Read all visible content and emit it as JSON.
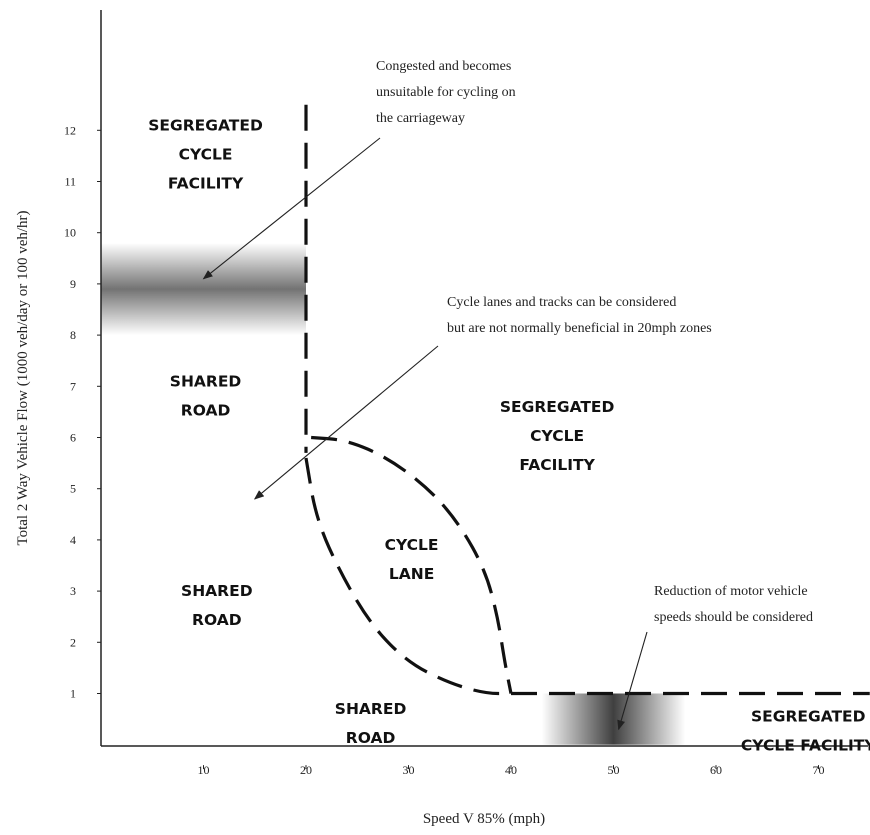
{
  "chart_data": {
    "type": "area",
    "title": "",
    "xlabel": "Speed V 85% (mph)",
    "ylabel": "Total 2 Way Vehicle Flow (1000 veh/day or 100 veh/hr)",
    "xlim": [
      0,
      75
    ],
    "ylim": [
      -0.4,
      14
    ],
    "x_ticks": [
      10,
      20,
      30,
      40,
      50,
      60,
      70
    ],
    "y_ticks": [
      1,
      2,
      3,
      4,
      5,
      6,
      7,
      8,
      9,
      10,
      11,
      12
    ],
    "grid": false,
    "boundaries": [
      {
        "name": "vertical-boundary",
        "style": "dashed",
        "points": [
          [
            20,
            12.5
          ],
          [
            20,
            5.7
          ]
        ]
      },
      {
        "name": "cycle-lane-outer",
        "style": "dashed",
        "points": [
          [
            20,
            5.6
          ],
          [
            21,
            4.4
          ],
          [
            23.5,
            3.3
          ],
          [
            26.5,
            2.3
          ],
          [
            30,
            1.6
          ],
          [
            34,
            1.2
          ],
          [
            37.5,
            1.0
          ],
          [
            40,
            1.0
          ]
        ]
      },
      {
        "name": "cycle-lane-inner",
        "style": "dashed",
        "points": [
          [
            20.5,
            6.0
          ],
          [
            24,
            5.95
          ],
          [
            28,
            5.6
          ],
          [
            32,
            5.0
          ],
          [
            35,
            4.3
          ],
          [
            37.5,
            3.4
          ],
          [
            38.7,
            2.5
          ],
          [
            39.4,
            1.6
          ],
          [
            40,
            1.0
          ]
        ]
      },
      {
        "name": "horizontal-boundary",
        "style": "dashed",
        "points": [
          [
            40,
            1.0
          ],
          [
            75,
            1.0
          ]
        ]
      }
    ],
    "shaded_bands": [
      {
        "name": "congestion-band",
        "x": [
          0,
          20
        ],
        "y_center": 8.9,
        "y_halfwidth": 0.9
      },
      {
        "name": "speed-band",
        "x_center": 50,
        "x_halfwidth": 7,
        "y": [
          0,
          1
        ]
      }
    ],
    "regions": [
      {
        "id": "seg-top",
        "lines": [
          "SEGREGATED",
          "CYCLE",
          "FACILITY"
        ],
        "x": 10.2,
        "y": 12.0
      },
      {
        "id": "shared-mid",
        "lines": [
          "SHARED",
          "ROAD"
        ],
        "x": 10.2,
        "y": 7.0
      },
      {
        "id": "seg-right",
        "lines": [
          "SEGREGATED",
          "CYCLE",
          "FACILITY"
        ],
        "x": 44.5,
        "y": 6.5
      },
      {
        "id": "cycle-lane",
        "lines": [
          "CYCLE",
          "LANE"
        ],
        "x": 30.3,
        "y": 3.8
      },
      {
        "id": "shared-low",
        "lines": [
          "SHARED",
          "ROAD"
        ],
        "x": 11.3,
        "y": 2.9
      },
      {
        "id": "shared-bottom",
        "lines": [
          "SHARED",
          "ROAD"
        ],
        "x": 26.3,
        "y": 0.6
      },
      {
        "id": "seg-bottom",
        "lines": [
          "SEGREGATED",
          "CYCLE FACILITY"
        ],
        "x": 69,
        "y": 0.45
      }
    ],
    "annotations": [
      {
        "id": "congested",
        "lines": [
          "Congested and becomes",
          "unsuitable for cycling on",
          "the carriageway"
        ],
        "arrow_to": [
          10,
          9.1
        ]
      },
      {
        "id": "cycle-lanes",
        "lines": [
          "Cycle lanes and tracks can be considered",
          "but are not normally beneficial in 20mph zones"
        ],
        "arrow_to": [
          15,
          4.8
        ]
      },
      {
        "id": "reduction",
        "lines": [
          "Reduction of motor vehicle",
          "speeds should be considered"
        ],
        "arrow_to": [
          50.5,
          0.3
        ]
      }
    ]
  }
}
